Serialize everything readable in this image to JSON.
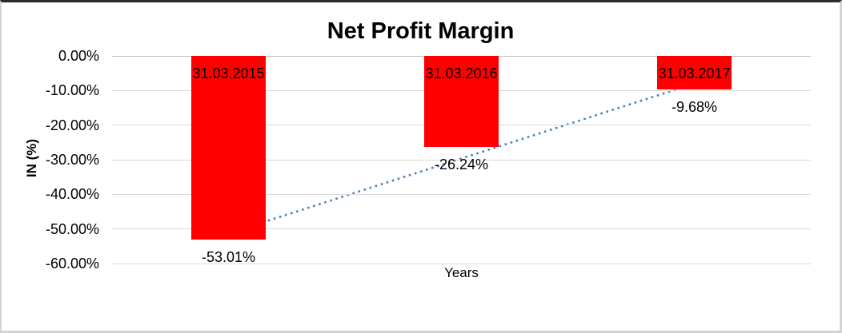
{
  "chart_data": {
    "type": "bar",
    "title": "Net Profit Margin",
    "xlabel": "Years",
    "ylabel": "IN (%)",
    "categories": [
      "31.03.2015",
      "31.03.2016",
      "31.03.2017"
    ],
    "values": [
      -53.01,
      -26.24,
      -9.68
    ],
    "value_labels": [
      "-53.01%",
      "-26.24%",
      "-9.68%"
    ],
    "bar_color": "#ff0000",
    "ylim": [
      -60,
      0
    ],
    "y_ticks": [
      0,
      -10,
      -20,
      -30,
      -40,
      -50,
      -60
    ],
    "y_tick_labels": [
      "0.00%",
      "-10.00%",
      "-20.00%",
      "-30.00%",
      "-40.00%",
      "-50.00%",
      "-60.00%"
    ],
    "grid": true,
    "legend": "none",
    "gridline_color": "#d9d9d9",
    "trendline": {
      "type": "linear",
      "style": "dotted",
      "color": "#4a7ebb",
      "start": {
        "category_index": 0,
        "value": -51.3
      },
      "end": {
        "category_index": 2,
        "value": -8.0
      }
    }
  }
}
